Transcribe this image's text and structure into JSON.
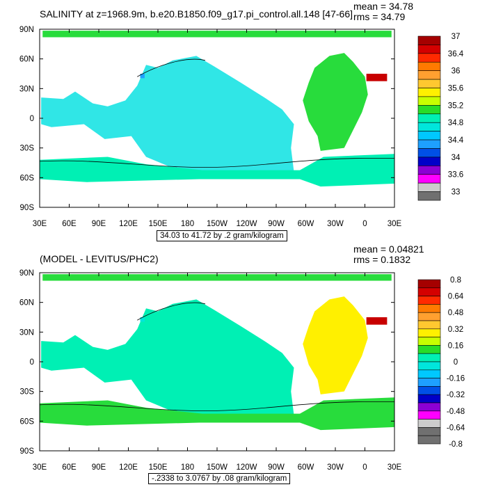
{
  "chart_data": [
    {
      "type": "heatmap",
      "title": "SALINITY at z=1968.9m, b.e20.B1850.f09_g17.pi_control.all.148 [47-66]",
      "stat_mean": "mean = 34.78",
      "stat_rms": "rms = 34.79",
      "range_note": "34.03 to 41.72 by .2 gram/kilogram",
      "x_ticks": [
        "30E",
        "60E",
        "90E",
        "120E",
        "150E",
        "180",
        "150W",
        "120W",
        "90W",
        "60W",
        "30W",
        "0",
        "30E"
      ],
      "y_ticks": [
        "90N",
        "60N",
        "30N",
        "0",
        "30S",
        "60S",
        "90S"
      ],
      "colorbar_labels": [
        "37",
        "36.4",
        "36",
        "35.6",
        "35.2",
        "34.8",
        "34.4",
        "34",
        "33.6",
        "33"
      ],
      "colorbar_label_positions": [
        0,
        2,
        4,
        6,
        8,
        10,
        12,
        14,
        16,
        18
      ],
      "colorbar_colors": [
        "#a50000",
        "#d40000",
        "#ff2a00",
        "#ff7a00",
        "#ffa030",
        "#ffc830",
        "#fff000",
        "#c8ff00",
        "#28dc28",
        "#00f0b4",
        "#00e6dc",
        "#00c8ff",
        "#1ea0ff",
        "#0050e6",
        "#0000c8",
        "#8c00d4",
        "#ff00ff",
        "#cccccc",
        "#707070"
      ],
      "field": {
        "pacific": "#30e6e6",
        "atlantic": "#28dc3c",
        "southern": "#00f0b4",
        "arctic": "#28dc3c",
        "med": "#c80000",
        "deep_blue": "#1ea0ff"
      }
    },
    {
      "type": "heatmap",
      "title": "(MODEL - LEVITUS/PHC2)",
      "stat_mean": "mean = 0.04821",
      "stat_rms": "rms = 0.1832",
      "range_note": "-.2338 to 3.0767 by .08 gram/kilogram",
      "x_ticks": [
        "30E",
        "60E",
        "90E",
        "120E",
        "150E",
        "180",
        "150W",
        "120W",
        "90W",
        "60W",
        "30W",
        "0",
        "30E"
      ],
      "y_ticks": [
        "90N",
        "60N",
        "30N",
        "0",
        "30S",
        "60S",
        "90S"
      ],
      "colorbar_labels": [
        "0.8",
        "0.64",
        "0.48",
        "0.32",
        "0.16",
        "0",
        "-0.16",
        "-0.32",
        "-0.48",
        "-0.64",
        "-0.8"
      ],
      "colorbar_label_positions": [
        0,
        2,
        4,
        6,
        8,
        10,
        12,
        14,
        16,
        18,
        20
      ],
      "colorbar_colors": [
        "#a50000",
        "#d40000",
        "#ff2a00",
        "#ff7a00",
        "#ffa030",
        "#ffc830",
        "#fff000",
        "#c8ff00",
        "#28dc28",
        "#00f0b4",
        "#00e6dc",
        "#00c8ff",
        "#1ea0ff",
        "#0050e6",
        "#0000c8",
        "#8c00d4",
        "#ff00ff",
        "#cccccc",
        "#707070",
        "#707070"
      ],
      "field": {
        "pacific": "#00f0b4",
        "atlantic": "#fff000",
        "southern": "#28dc3c",
        "arctic": "#28dc3c",
        "med": "#c80000",
        "deep_blue": "#00e6dc"
      }
    }
  ]
}
